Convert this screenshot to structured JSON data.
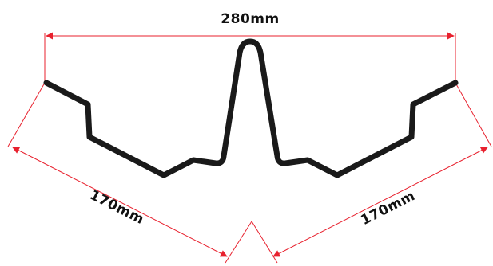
{
  "colors": {
    "profile": "#1a1a1a",
    "dimension": "#e8212e",
    "text": "#111111",
    "background": "#ffffff"
  },
  "dimensions": {
    "top_width": "280mm",
    "left_slant": "170mm",
    "right_slant": "170mm"
  }
}
